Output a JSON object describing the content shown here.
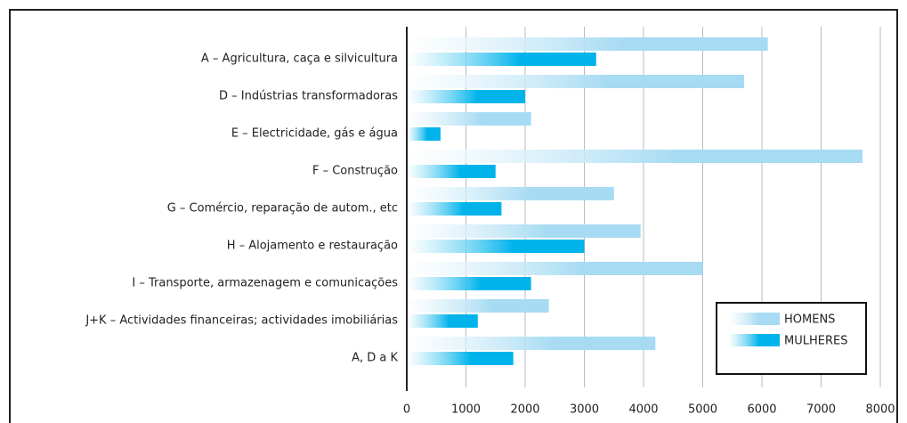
{
  "chart_data": {
    "type": "hbar",
    "categories": [
      "A – Agricultura, caça e silvicultura",
      "D – Indústrias transformadoras",
      "E – Electricidade, gás e água",
      "F – Construção",
      "G – Comércio, reparação de autom., etc",
      "H – Alojamento e restauração",
      "I – Transporte, armazenagem e comunicações",
      "J+K – Actividades financeiras; actividades imobiliárias",
      "A, D a K"
    ],
    "series": [
      {
        "name": "HOMENS",
        "color": "#a6dbf3",
        "values": [
          6100,
          5700,
          2100,
          7700,
          3500,
          3950,
          5000,
          2400,
          4200
        ]
      },
      {
        "name": "MULHERES",
        "color": "#00b3eb",
        "values": [
          3200,
          2000,
          570,
          1500,
          1600,
          3000,
          2100,
          1200,
          1800
        ]
      }
    ],
    "xlim": [
      0,
      8000
    ],
    "xticks": [
      0,
      1000,
      2000,
      3000,
      4000,
      5000,
      6000,
      7000,
      8000
    ],
    "grid": true,
    "legend": "lower right"
  }
}
